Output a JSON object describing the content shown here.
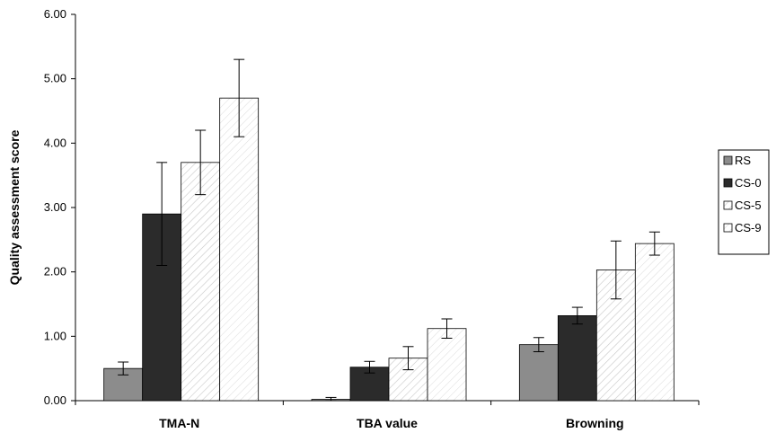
{
  "chart_data": {
    "type": "bar",
    "title": "",
    "xlabel": "",
    "ylabel": "Quality assessment score",
    "ylim": [
      0,
      6
    ],
    "yticks": [
      "0.00",
      "1.00",
      "2.00",
      "3.00",
      "4.00",
      "5.00",
      "6.00"
    ],
    "categories": [
      "TMA-N",
      "TBA value",
      "Browning"
    ],
    "series": [
      {
        "name": "RS",
        "values": [
          0.5,
          0.02,
          0.87
        ],
        "errors": [
          0.1,
          0.03,
          0.11
        ],
        "color": "#8c8c8c",
        "pattern": "solid"
      },
      {
        "name": "CS-0",
        "values": [
          2.9,
          0.52,
          1.32
        ],
        "errors": [
          0.8,
          0.09,
          0.13
        ],
        "color": "#2b2b2b",
        "pattern": "solid"
      },
      {
        "name": "CS-5",
        "values": [
          3.7,
          0.66,
          2.03
        ],
        "errors": [
          0.5,
          0.18,
          0.45
        ],
        "color": "#ffffff",
        "pattern": "diagonal-light"
      },
      {
        "name": "CS-9",
        "values": [
          4.7,
          1.12,
          2.44
        ],
        "errors": [
          0.6,
          0.15,
          0.18
        ],
        "color": "#ffffff",
        "pattern": "diagonal-lighter"
      }
    ],
    "grid": false,
    "legend": "right"
  }
}
